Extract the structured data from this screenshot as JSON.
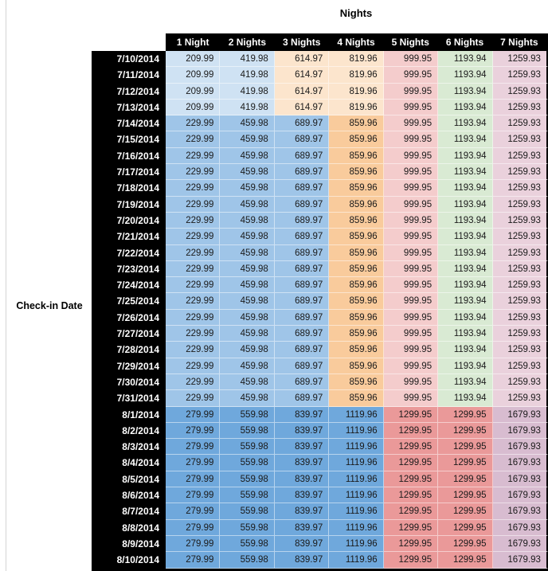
{
  "title": "Nights",
  "left_axis_label": "Check-in Date",
  "columns": [
    "1 Night",
    "2 Nights",
    "3 Nights",
    "4 Nights",
    "5 Nights",
    "6 Nights",
    "7 Nights"
  ],
  "colors": {
    "header_bg": "#000000",
    "header_text": "#ffffff",
    "date_col_bg": "#000000",
    "date_col_text": "#ffffff",
    "value_text": "#1a1a1a",
    "sheet_gridline": "#d4d4d4",
    "bands": {
      "early": [
        "#cfe2f3",
        "#cfe2f3",
        "#fce5cd",
        "#fce5cd",
        "#f4cccc",
        "#d9ead3",
        "#ead1dc"
      ],
      "mid": [
        "#9fc5e8",
        "#9fc5e8",
        "#9fc5e8",
        "#f9cb9c",
        "#f4cccc",
        "#d9ead3",
        "#ead1dc"
      ],
      "late": [
        "#6fa8dc",
        "#6fa8dc",
        "#6fa8dc",
        "#6fa8dc",
        "#ea9999",
        "#ea9999",
        "#d8bcd0"
      ]
    }
  },
  "rows": [
    {
      "date": "7/10/2014",
      "band": "early",
      "values": [
        "209.99",
        "419.98",
        "614.97",
        "819.96",
        "999.95",
        "1193.94",
        "1259.93"
      ]
    },
    {
      "date": "7/11/2014",
      "band": "early",
      "values": [
        "209.99",
        "419.98",
        "614.97",
        "819.96",
        "999.95",
        "1193.94",
        "1259.93"
      ]
    },
    {
      "date": "7/12/2014",
      "band": "early",
      "values": [
        "209.99",
        "419.98",
        "614.97",
        "819.96",
        "999.95",
        "1193.94",
        "1259.93"
      ]
    },
    {
      "date": "7/13/2014",
      "band": "early",
      "values": [
        "209.99",
        "419.98",
        "614.97",
        "819.96",
        "999.95",
        "1193.94",
        "1259.93"
      ]
    },
    {
      "date": "7/14/2014",
      "band": "mid",
      "values": [
        "229.99",
        "459.98",
        "689.97",
        "859.96",
        "999.95",
        "1193.94",
        "1259.93"
      ]
    },
    {
      "date": "7/15/2014",
      "band": "mid",
      "values": [
        "229.99",
        "459.98",
        "689.97",
        "859.96",
        "999.95",
        "1193.94",
        "1259.93"
      ]
    },
    {
      "date": "7/16/2014",
      "band": "mid",
      "values": [
        "229.99",
        "459.98",
        "689.97",
        "859.96",
        "999.95",
        "1193.94",
        "1259.93"
      ]
    },
    {
      "date": "7/17/2014",
      "band": "mid",
      "values": [
        "229.99",
        "459.98",
        "689.97",
        "859.96",
        "999.95",
        "1193.94",
        "1259.93"
      ]
    },
    {
      "date": "7/18/2014",
      "band": "mid",
      "values": [
        "229.99",
        "459.98",
        "689.97",
        "859.96",
        "999.95",
        "1193.94",
        "1259.93"
      ]
    },
    {
      "date": "7/19/2014",
      "band": "mid",
      "values": [
        "229.99",
        "459.98",
        "689.97",
        "859.96",
        "999.95",
        "1193.94",
        "1259.93"
      ]
    },
    {
      "date": "7/20/2014",
      "band": "mid",
      "values": [
        "229.99",
        "459.98",
        "689.97",
        "859.96",
        "999.95",
        "1193.94",
        "1259.93"
      ]
    },
    {
      "date": "7/21/2014",
      "band": "mid",
      "values": [
        "229.99",
        "459.98",
        "689.97",
        "859.96",
        "999.95",
        "1193.94",
        "1259.93"
      ]
    },
    {
      "date": "7/22/2014",
      "band": "mid",
      "values": [
        "229.99",
        "459.98",
        "689.97",
        "859.96",
        "999.95",
        "1193.94",
        "1259.93"
      ]
    },
    {
      "date": "7/23/2014",
      "band": "mid",
      "values": [
        "229.99",
        "459.98",
        "689.97",
        "859.96",
        "999.95",
        "1193.94",
        "1259.93"
      ]
    },
    {
      "date": "7/24/2014",
      "band": "mid",
      "values": [
        "229.99",
        "459.98",
        "689.97",
        "859.96",
        "999.95",
        "1193.94",
        "1259.93"
      ]
    },
    {
      "date": "7/25/2014",
      "band": "mid",
      "values": [
        "229.99",
        "459.98",
        "689.97",
        "859.96",
        "999.95",
        "1193.94",
        "1259.93"
      ]
    },
    {
      "date": "7/26/2014",
      "band": "mid",
      "values": [
        "229.99",
        "459.98",
        "689.97",
        "859.96",
        "999.95",
        "1193.94",
        "1259.93"
      ]
    },
    {
      "date": "7/27/2014",
      "band": "mid",
      "values": [
        "229.99",
        "459.98",
        "689.97",
        "859.96",
        "999.95",
        "1193.94",
        "1259.93"
      ]
    },
    {
      "date": "7/28/2014",
      "band": "mid",
      "values": [
        "229.99",
        "459.98",
        "689.97",
        "859.96",
        "999.95",
        "1193.94",
        "1259.93"
      ]
    },
    {
      "date": "7/29/2014",
      "band": "mid",
      "values": [
        "229.99",
        "459.98",
        "689.97",
        "859.96",
        "999.95",
        "1193.94",
        "1259.93"
      ]
    },
    {
      "date": "7/30/2014",
      "band": "mid",
      "values": [
        "229.99",
        "459.98",
        "689.97",
        "859.96",
        "999.95",
        "1193.94",
        "1259.93"
      ]
    },
    {
      "date": "7/31/2014",
      "band": "mid",
      "values": [
        "229.99",
        "459.98",
        "689.97",
        "859.96",
        "999.95",
        "1193.94",
        "1259.93"
      ]
    },
    {
      "date": "8/1/2014",
      "band": "late",
      "values": [
        "279.99",
        "559.98",
        "839.97",
        "1119.96",
        "1299.95",
        "1299.95",
        "1679.93"
      ]
    },
    {
      "date": "8/2/2014",
      "band": "late",
      "values": [
        "279.99",
        "559.98",
        "839.97",
        "1119.96",
        "1299.95",
        "1299.95",
        "1679.93"
      ]
    },
    {
      "date": "8/3/2014",
      "band": "late",
      "values": [
        "279.99",
        "559.98",
        "839.97",
        "1119.96",
        "1299.95",
        "1299.95",
        "1679.93"
      ]
    },
    {
      "date": "8/4/2014",
      "band": "late",
      "values": [
        "279.99",
        "559.98",
        "839.97",
        "1119.96",
        "1299.95",
        "1299.95",
        "1679.93"
      ]
    },
    {
      "date": "8/5/2014",
      "band": "late",
      "values": [
        "279.99",
        "559.98",
        "839.97",
        "1119.96",
        "1299.95",
        "1299.95",
        "1679.93"
      ]
    },
    {
      "date": "8/6/2014",
      "band": "late",
      "values": [
        "279.99",
        "559.98",
        "839.97",
        "1119.96",
        "1299.95",
        "1299.95",
        "1679.93"
      ]
    },
    {
      "date": "8/7/2014",
      "band": "late",
      "values": [
        "279.99",
        "559.98",
        "839.97",
        "1119.96",
        "1299.95",
        "1299.95",
        "1679.93"
      ]
    },
    {
      "date": "8/8/2014",
      "band": "late",
      "values": [
        "279.99",
        "559.98",
        "839.97",
        "1119.96",
        "1299.95",
        "1299.95",
        "1679.93"
      ]
    },
    {
      "date": "8/9/2014",
      "band": "late",
      "values": [
        "279.99",
        "559.98",
        "839.97",
        "1119.96",
        "1299.95",
        "1299.95",
        "1679.93"
      ]
    },
    {
      "date": "8/10/2014",
      "band": "late",
      "values": [
        "279.99",
        "559.98",
        "839.97",
        "1119.96",
        "1299.95",
        "1299.95",
        "1679.93"
      ]
    }
  ]
}
